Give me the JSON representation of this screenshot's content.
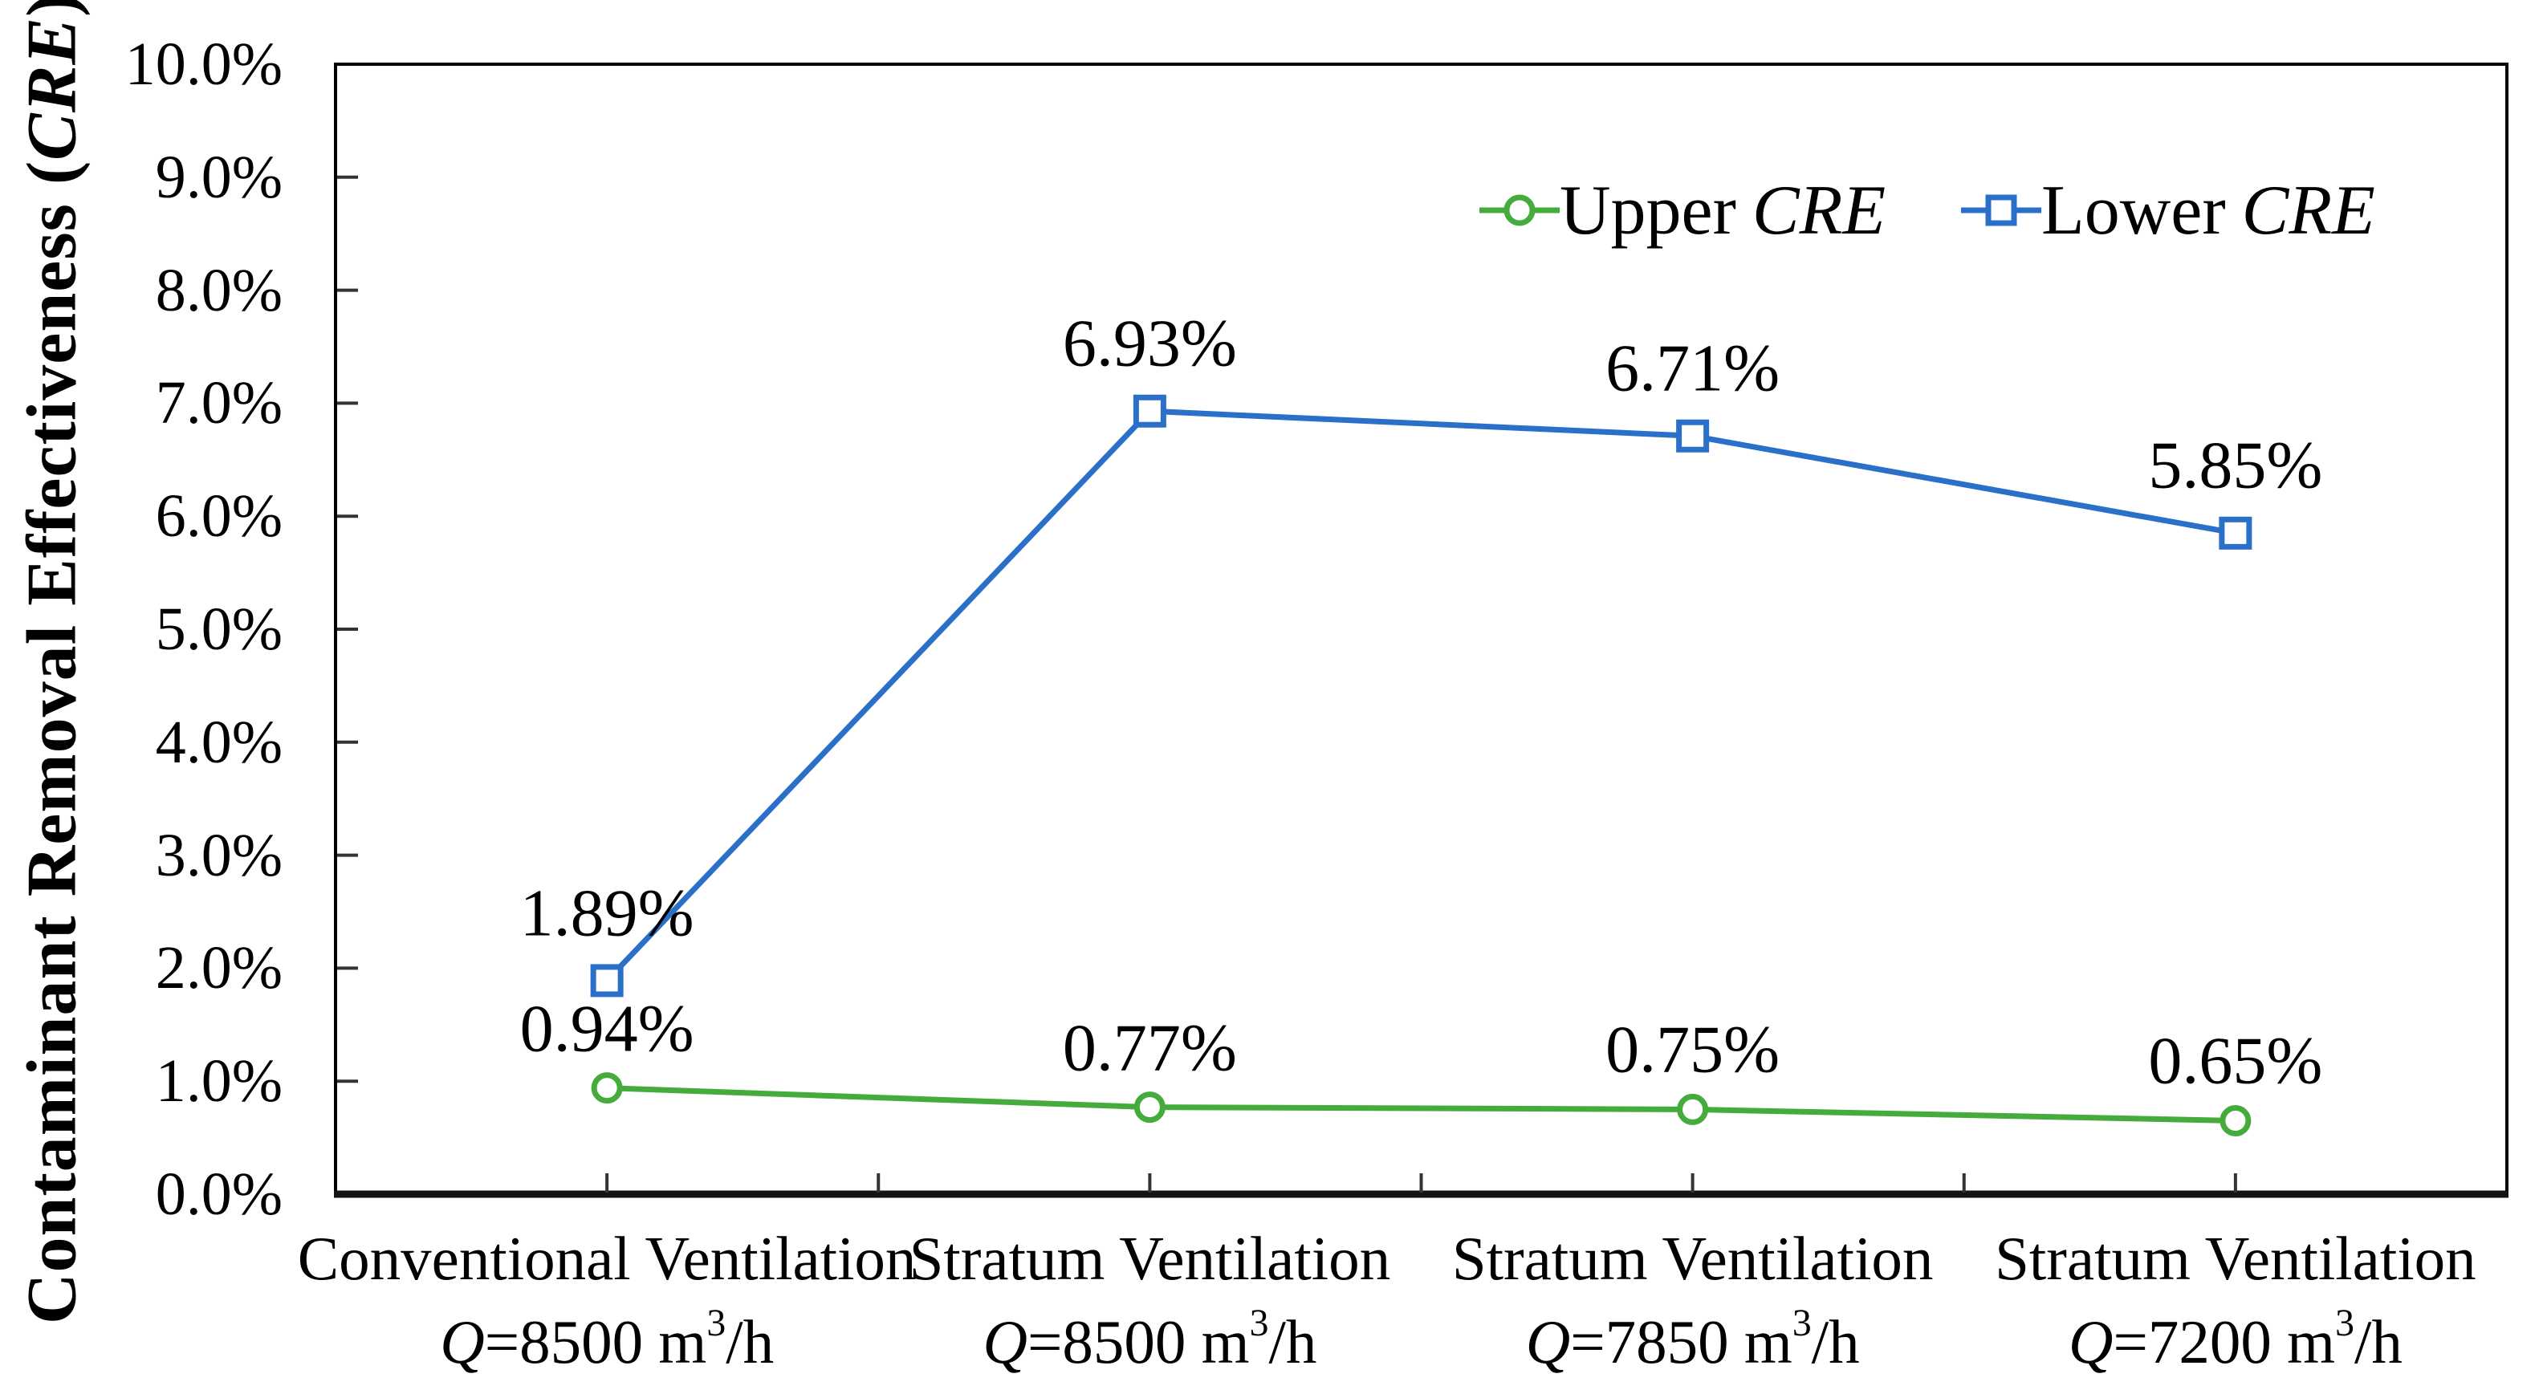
{
  "chart_data": {
    "type": "line",
    "title": "",
    "grid": false,
    "legend_position": "top-right-inside",
    "axis_color": "#000000",
    "tick_color": "#333333",
    "y_axis": {
      "title_prefix": "Contaminant Removal Effectiveness (",
      "title_italic": "CRE",
      "title_suffix": " )",
      "min": 0,
      "max": 10,
      "ticks": [
        "0.0%",
        "1.0%",
        "2.0%",
        "3.0%",
        "4.0%",
        "5.0%",
        "6.0%",
        "7.0%",
        "8.0%",
        "9.0%",
        "10.0%"
      ]
    },
    "x_axis": {
      "categories": [
        {
          "name": "Conventional Ventilation",
          "q_symbol": "Q",
          "flow": "=8500",
          "unit_m": " m",
          "unit_exp": "3",
          "unit_rest": "/h"
        },
        {
          "name": "Stratum Ventilation",
          "q_symbol": "Q",
          "flow": "=8500",
          "unit_m": " m",
          "unit_exp": "3",
          "unit_rest": "/h"
        },
        {
          "name": "Stratum Ventilation",
          "q_symbol": "Q",
          "flow": "=7850",
          "unit_m": " m",
          "unit_exp": "3",
          "unit_rest": "/h"
        },
        {
          "name": "Stratum Ventilation",
          "q_symbol": "Q",
          "flow": "=7200",
          "unit_m": " m",
          "unit_exp": "3",
          "unit_rest": "/h"
        }
      ]
    },
    "series": [
      {
        "name": "Upper",
        "name_italic": "CRE",
        "marker": "circle",
        "color": "#45ab3c",
        "values": [
          0.94,
          0.77,
          0.75,
          0.65
        ],
        "labels": [
          "0.94%",
          "0.77%",
          "0.75%",
          "0.65%"
        ]
      },
      {
        "name": "Lower",
        "name_italic": "CRE",
        "marker": "square",
        "color": "#2a6fc8",
        "values": [
          1.89,
          6.93,
          6.71,
          5.85
        ],
        "labels": [
          "1.89%",
          "6.93%",
          "6.71%",
          "5.85%"
        ]
      }
    ]
  }
}
